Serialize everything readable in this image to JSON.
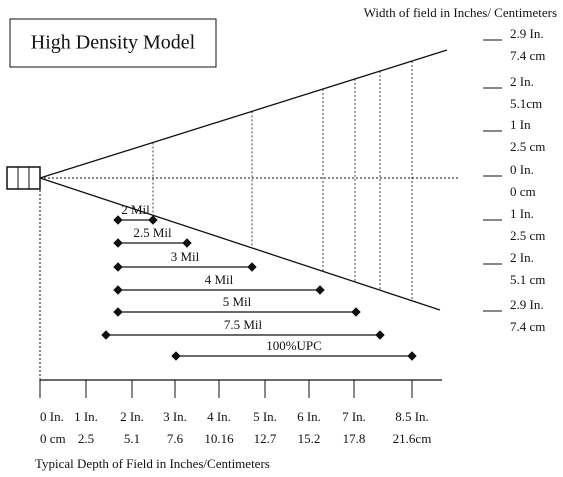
{
  "title": "High Density Model",
  "width_axis": {
    "label": "Width of field in Inches/ Centimeters",
    "ticks": [
      {
        "inches": "2.9 In.",
        "cm": "7.4 cm"
      },
      {
        "inches": "2 In.",
        "cm": "5.1cm"
      },
      {
        "inches": "1 In",
        "cm": "2.5 cm"
      },
      {
        "inches": "0 In.",
        "cm": "0 cm"
      },
      {
        "inches": "1 In.",
        "cm": "2.5 cm"
      },
      {
        "inches": "2 In.",
        "cm": "5.1 cm"
      },
      {
        "inches": "2.9 In.",
        "cm": "7.4 cm"
      }
    ]
  },
  "depth_axis": {
    "label": "Typical Depth of Field in Inches/Centimeters",
    "ticks": [
      {
        "inches": "0 In.",
        "cm": "0 cm"
      },
      {
        "inches": "1 In.",
        "cm": "2.5"
      },
      {
        "inches": "2 In.",
        "cm": "5.1"
      },
      {
        "inches": "3 In.",
        "cm": "7.6"
      },
      {
        "inches": "4 In.",
        "cm": "10.16"
      },
      {
        "inches": "5 In.",
        "cm": "12.7"
      },
      {
        "inches": "6 In.",
        "cm": "15.2"
      },
      {
        "inches": "7 In.",
        "cm": "17.8"
      },
      {
        "inches": "8.5 In.",
        "cm": "21.6cm"
      }
    ]
  },
  "ranges": [
    {
      "label": "2 Mil"
    },
    {
      "label": "2.5 Mil"
    },
    {
      "label": "3 Mil"
    },
    {
      "label": "4 Mil"
    },
    {
      "label": "5 Mil"
    },
    {
      "label": "7.5 Mil"
    },
    {
      "label": "100%UPC"
    }
  ]
}
